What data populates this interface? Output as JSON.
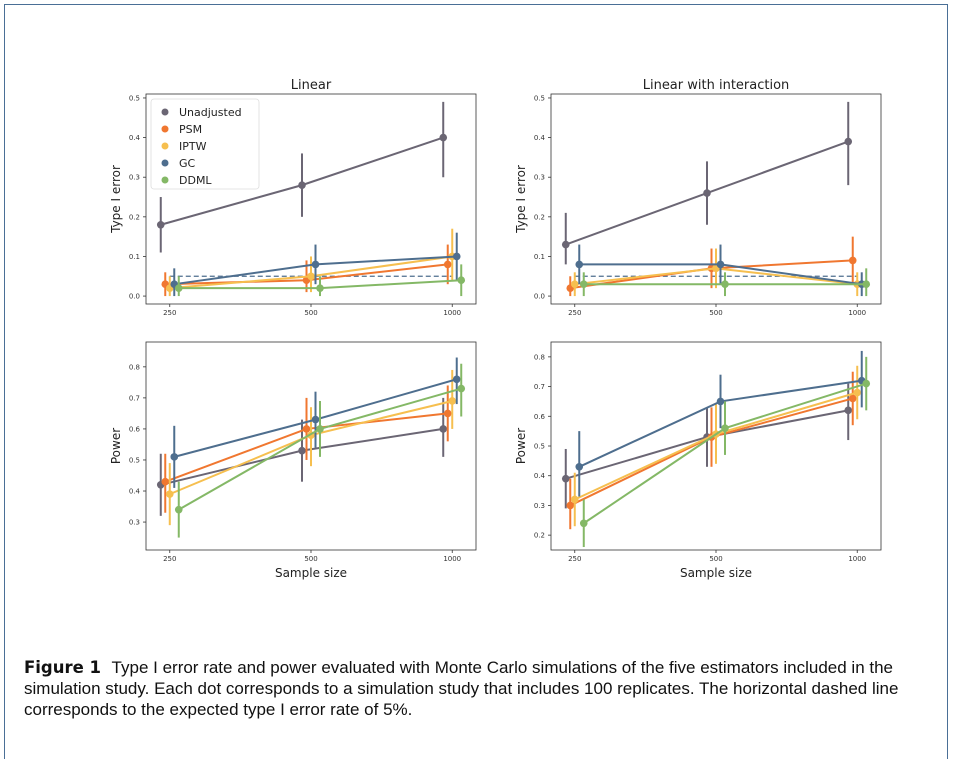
{
  "figure": {
    "caption_label": "Figure 1",
    "caption_text": "Type I error rate and power evaluated with Monte Carlo simulations of the five estimators included in the simulation study. Each dot corresponds to a simulation study that includes 100 replicates. The horizontal dashed line corresponds to the expected type I error rate of 5%."
  },
  "colors": {
    "Unadjusted": "#6b6674",
    "PSM": "#f07730",
    "IPTW": "#f6bf4f",
    "GC": "#4e6e8e",
    "DDML": "#84b866"
  },
  "legend": [
    "Unadjusted",
    "PSM",
    "IPTW",
    "GC",
    "DDML"
  ],
  "chart_data": [
    {
      "type": "line",
      "title": "Linear",
      "xlabel": "",
      "ylabel": "Type I error",
      "x": [
        250,
        500,
        1000
      ],
      "ylim": [
        -0.02,
        0.51
      ],
      "yticks": [
        0.0,
        0.1,
        0.2,
        0.3,
        0.4,
        0.5
      ],
      "ytick_labels": [
        "0.0",
        "0.1",
        "0.2",
        "0.3",
        "0.4",
        "0.5"
      ],
      "reference_line": 0.05,
      "legend_placement": "top-left",
      "series": [
        {
          "name": "Unadjusted",
          "values": [
            0.18,
            0.28,
            0.4
          ],
          "lo": [
            0.11,
            0.2,
            0.3
          ],
          "hi": [
            0.25,
            0.36,
            0.49
          ]
        },
        {
          "name": "PSM",
          "values": [
            0.03,
            0.04,
            0.08
          ],
          "lo": [
            0.0,
            0.01,
            0.03
          ],
          "hi": [
            0.06,
            0.09,
            0.13
          ]
        },
        {
          "name": "IPTW",
          "values": [
            0.02,
            0.05,
            0.1
          ],
          "lo": [
            0.0,
            0.01,
            0.04
          ],
          "hi": [
            0.05,
            0.1,
            0.17
          ]
        },
        {
          "name": "GC",
          "values": [
            0.03,
            0.08,
            0.1
          ],
          "lo": [
            0.0,
            0.03,
            0.04
          ],
          "hi": [
            0.07,
            0.13,
            0.16
          ]
        },
        {
          "name": "DDML",
          "values": [
            0.02,
            0.02,
            0.04
          ],
          "lo": [
            0.0,
            0.0,
            0.0
          ],
          "hi": [
            0.05,
            0.05,
            0.08
          ]
        }
      ]
    },
    {
      "type": "line",
      "title": "Linear with interaction",
      "xlabel": "",
      "ylabel": "Type I error",
      "x": [
        250,
        500,
        1000
      ],
      "ylim": [
        -0.02,
        0.51
      ],
      "yticks": [
        0.0,
        0.1,
        0.2,
        0.3,
        0.4,
        0.5
      ],
      "ytick_labels": [
        "0.0",
        "0.1",
        "0.2",
        "0.3",
        "0.4",
        "0.5"
      ],
      "reference_line": 0.05,
      "series": [
        {
          "name": "Unadjusted",
          "values": [
            0.13,
            0.26,
            0.39
          ],
          "lo": [
            0.08,
            0.18,
            0.28
          ],
          "hi": [
            0.21,
            0.34,
            0.49
          ]
        },
        {
          "name": "PSM",
          "values": [
            0.02,
            0.07,
            0.09
          ],
          "lo": [
            0.0,
            0.02,
            0.03
          ],
          "hi": [
            0.05,
            0.12,
            0.15
          ]
        },
        {
          "name": "IPTW",
          "values": [
            0.03,
            0.07,
            0.03
          ],
          "lo": [
            0.0,
            0.02,
            0.0
          ],
          "hi": [
            0.06,
            0.12,
            0.06
          ]
        },
        {
          "name": "GC",
          "values": [
            0.08,
            0.08,
            0.03
          ],
          "lo": [
            0.03,
            0.03,
            0.0
          ],
          "hi": [
            0.13,
            0.13,
            0.06
          ]
        },
        {
          "name": "DDML",
          "values": [
            0.03,
            0.03,
            0.03
          ],
          "lo": [
            0.0,
            0.0,
            0.0
          ],
          "hi": [
            0.06,
            0.06,
            0.07
          ]
        }
      ]
    },
    {
      "type": "line",
      "title": "",
      "xlabel": "Sample size",
      "ylabel": "Power",
      "x": [
        250,
        500,
        1000
      ],
      "ylim": [
        0.21,
        0.88
      ],
      "yticks": [
        0.3,
        0.4,
        0.5,
        0.6,
        0.7,
        0.8
      ],
      "ytick_labels": [
        "0.3",
        "0.4",
        "0.5",
        "0.6",
        "0.7",
        "0.8"
      ],
      "series": [
        {
          "name": "Unadjusted",
          "values": [
            0.42,
            0.53,
            0.6
          ],
          "lo": [
            0.32,
            0.43,
            0.51
          ],
          "hi": [
            0.52,
            0.63,
            0.7
          ]
        },
        {
          "name": "PSM",
          "values": [
            0.43,
            0.6,
            0.65
          ],
          "lo": [
            0.33,
            0.5,
            0.56
          ],
          "hi": [
            0.52,
            0.7,
            0.74
          ]
        },
        {
          "name": "IPTW",
          "values": [
            0.39,
            0.58,
            0.69
          ],
          "lo": [
            0.29,
            0.48,
            0.6
          ],
          "hi": [
            0.49,
            0.67,
            0.79
          ]
        },
        {
          "name": "GC",
          "values": [
            0.51,
            0.63,
            0.76
          ],
          "lo": [
            0.41,
            0.54,
            0.68
          ],
          "hi": [
            0.61,
            0.72,
            0.83
          ]
        },
        {
          "name": "DDML",
          "values": [
            0.34,
            0.6,
            0.73
          ],
          "lo": [
            0.25,
            0.51,
            0.64
          ],
          "hi": [
            0.43,
            0.69,
            0.81
          ]
        }
      ]
    },
    {
      "type": "line",
      "title": "",
      "xlabel": "Sample size",
      "ylabel": "Power",
      "x": [
        250,
        500,
        1000
      ],
      "ylim": [
        0.15,
        0.85
      ],
      "yticks": [
        0.2,
        0.3,
        0.4,
        0.5,
        0.6,
        0.7,
        0.8
      ],
      "ytick_labels": [
        "0.2",
        "0.3",
        "0.4",
        "0.5",
        "0.6",
        "0.7",
        "0.8"
      ],
      "series": [
        {
          "name": "Unadjusted",
          "values": [
            0.39,
            0.53,
            0.62
          ],
          "lo": [
            0.29,
            0.43,
            0.52
          ],
          "hi": [
            0.49,
            0.63,
            0.71
          ]
        },
        {
          "name": "PSM",
          "values": [
            0.3,
            0.53,
            0.66
          ],
          "lo": [
            0.22,
            0.43,
            0.57
          ],
          "hi": [
            0.39,
            0.63,
            0.75
          ]
        },
        {
          "name": "IPTW",
          "values": [
            0.32,
            0.54,
            0.68
          ],
          "lo": [
            0.23,
            0.44,
            0.59
          ],
          "hi": [
            0.41,
            0.64,
            0.77
          ]
        },
        {
          "name": "GC",
          "values": [
            0.43,
            0.65,
            0.72
          ],
          "lo": [
            0.33,
            0.56,
            0.63
          ],
          "hi": [
            0.55,
            0.74,
            0.82
          ]
        },
        {
          "name": "DDML",
          "values": [
            0.24,
            0.56,
            0.71
          ],
          "lo": [
            0.16,
            0.47,
            0.62
          ],
          "hi": [
            0.32,
            0.65,
            0.8
          ]
        }
      ]
    }
  ]
}
